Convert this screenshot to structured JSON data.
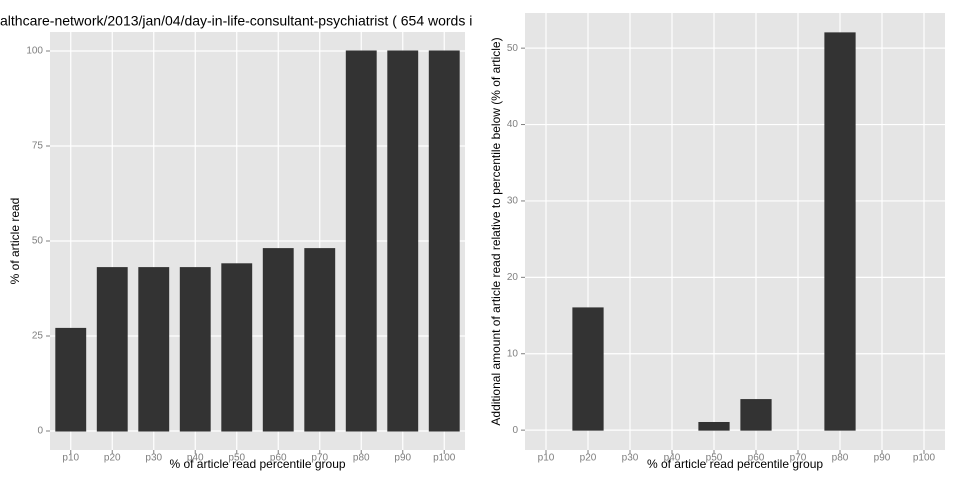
{
  "chart_data": [
    {
      "type": "bar",
      "title": "althcare-network/2013/jan/04/day-in-life-consultant-psychiatrist ( 654 words i",
      "x_label": "% of article read percentile group",
      "y_label": "% of article read",
      "categories": [
        "p10",
        "p20",
        "p30",
        "p40",
        "p50",
        "p60",
        "p70",
        "p80",
        "p90",
        "p100"
      ],
      "values": [
        27,
        43,
        43,
        43,
        44,
        48,
        48,
        100,
        100,
        100
      ],
      "color": "#333333",
      "ylim": [
        -5,
        105
      ],
      "yticks": [
        0,
        25,
        50,
        75,
        100
      ],
      "grid": true
    },
    {
      "type": "bar",
      "x_label": "% of article read percentile group",
      "y_label": "Additional amount of article read relative to percentile below (% of article)",
      "categories": [
        "p10",
        "p20",
        "p30",
        "p40",
        "p50",
        "p60",
        "p70",
        "p80",
        "p90",
        "p100"
      ],
      "values": [
        0,
        16,
        0,
        0,
        1,
        4,
        0,
        52,
        0,
        0
      ],
      "color": "#333333",
      "ylim": [
        -2.6,
        54.6
      ],
      "yticks": [
        0,
        10,
        20,
        30,
        40,
        50
      ],
      "grid": true
    }
  ]
}
